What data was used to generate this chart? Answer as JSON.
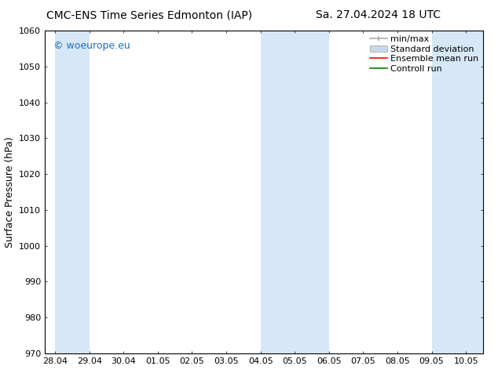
{
  "title_left": "CMC-ENS Time Series Edmonton (IAP)",
  "title_right": "Sa. 27.04.2024 18 UTC",
  "ylabel": "Surface Pressure (hPa)",
  "ylim": [
    970,
    1060
  ],
  "yticks": [
    970,
    980,
    990,
    1000,
    1010,
    1020,
    1030,
    1040,
    1050,
    1060
  ],
  "x_tick_labels": [
    "28.04",
    "29.04",
    "30.04",
    "01.05",
    "02.05",
    "03.05",
    "04.05",
    "05.05",
    "06.05",
    "07.05",
    "08.05",
    "09.05",
    "10.05"
  ],
  "x_tick_positions": [
    0,
    1,
    2,
    3,
    4,
    5,
    6,
    7,
    8,
    9,
    10,
    11,
    12
  ],
  "xlim": [
    -0.3,
    12.5
  ],
  "shaded_bands": [
    {
      "x_start": 0,
      "x_end": 1
    },
    {
      "x_start": 6,
      "x_end": 8
    },
    {
      "x_start": 11,
      "x_end": 12.5
    }
  ],
  "band_color": "#d6e8f7",
  "background_color": "#ffffff",
  "plot_bg_color": "#ffffff",
  "watermark_text": "© woeurope.eu",
  "watermark_color": "#1a6fba",
  "legend_entries": [
    "min/max",
    "Standard deviation",
    "Ensemble mean run",
    "Controll run"
  ],
  "legend_colors_minmax": "#aaaaaa",
  "legend_colors_std": "#c8d8e8",
  "legend_colors_ens": "#ff0000",
  "legend_colors_ctrl": "#008000",
  "title_fontsize": 10,
  "axis_label_fontsize": 9,
  "tick_fontsize": 8,
  "legend_fontsize": 8,
  "watermark_fontsize": 9
}
